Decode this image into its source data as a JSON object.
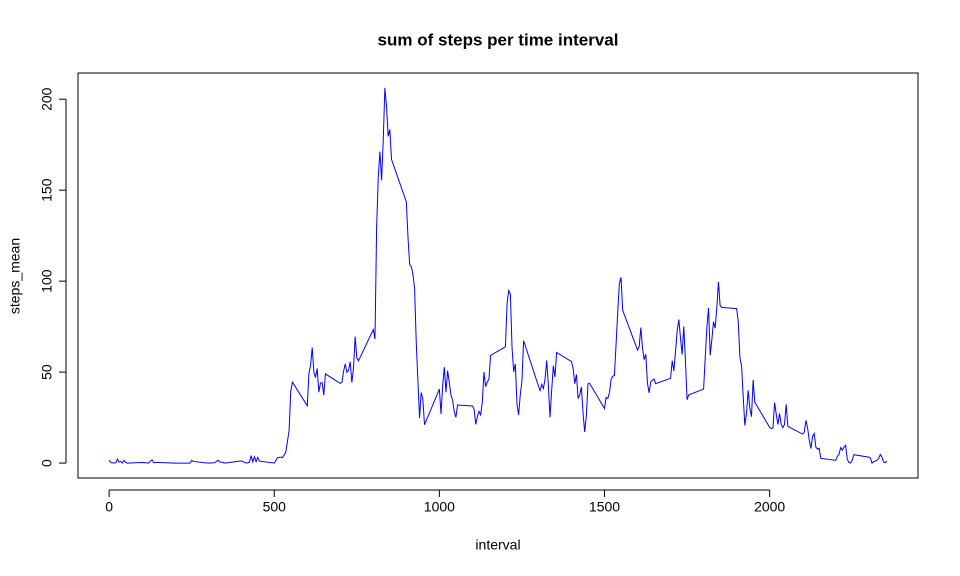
{
  "chart_data": {
    "type": "line",
    "title": "sum of steps per time interval",
    "x_label": "interval",
    "y_label": "steps_mean",
    "color": "#0000ff",
    "x": [
      0,
      5,
      10,
      20,
      25,
      30,
      35,
      40,
      45,
      50,
      55,
      100,
      110,
      120,
      125,
      130,
      135,
      145,
      150,
      200,
      230,
      245,
      250,
      255,
      300,
      320,
      330,
      335,
      340,
      350,
      400,
      415,
      425,
      430,
      435,
      440,
      445,
      450,
      455,
      500,
      510,
      520,
      525,
      535,
      545,
      550,
      555,
      600,
      605,
      610,
      615,
      620,
      625,
      630,
      635,
      640,
      645,
      650,
      655,
      700,
      705,
      710,
      715,
      720,
      725,
      730,
      735,
      740,
      745,
      750,
      755,
      800,
      805,
      810,
      815,
      820,
      825,
      830,
      835,
      840,
      845,
      850,
      855,
      900,
      905,
      910,
      915,
      920,
      925,
      930,
      935,
      940,
      945,
      950,
      955,
      1000,
      1005,
      1010,
      1015,
      1020,
      1025,
      1030,
      1035,
      1040,
      1045,
      1050,
      1055,
      1100,
      1105,
      1110,
      1115,
      1120,
      1125,
      1130,
      1135,
      1140,
      1145,
      1150,
      1155,
      1200,
      1205,
      1210,
      1215,
      1220,
      1225,
      1230,
      1235,
      1240,
      1245,
      1250,
      1255,
      1300,
      1305,
      1310,
      1315,
      1320,
      1325,
      1330,
      1335,
      1340,
      1345,
      1350,
      1355,
      1400,
      1405,
      1410,
      1415,
      1420,
      1425,
      1430,
      1435,
      1440,
      1445,
      1450,
      1455,
      1500,
      1505,
      1510,
      1515,
      1520,
      1525,
      1530,
      1535,
      1540,
      1545,
      1550,
      1555,
      1600,
      1605,
      1610,
      1615,
      1620,
      1625,
      1630,
      1635,
      1640,
      1645,
      1650,
      1655,
      1700,
      1705,
      1710,
      1715,
      1720,
      1725,
      1730,
      1735,
      1740,
      1745,
      1750,
      1755,
      1800,
      1805,
      1810,
      1815,
      1820,
      1825,
      1830,
      1835,
      1840,
      1845,
      1850,
      1855,
      1900,
      1905,
      1910,
      1915,
      1920,
      1925,
      1930,
      1935,
      1940,
      1945,
      1950,
      1955,
      2000,
      2005,
      2010,
      2015,
      2020,
      2025,
      2030,
      2035,
      2040,
      2045,
      2050,
      2055,
      2100,
      2105,
      2110,
      2115,
      2120,
      2125,
      2130,
      2135,
      2140,
      2145,
      2150,
      2155,
      2200,
      2205,
      2210,
      2215,
      2220,
      2225,
      2230,
      2235,
      2240,
      2245,
      2250,
      2255,
      2300,
      2305,
      2310,
      2315,
      2320,
      2325,
      2330,
      2335,
      2340,
      2345,
      2350,
      2355
    ],
    "values": [
      1.7,
      0.3,
      0.1,
      0.1,
      2.1,
      0.5,
      0.9,
      0,
      1.5,
      0.4,
      0,
      0.3,
      0.2,
      0,
      1.1,
      1.8,
      0.2,
      0.4,
      0.3,
      0,
      0,
      0,
      1.5,
      0.9,
      0,
      0.2,
      1.6,
      0.6,
      0.5,
      0,
      1.2,
      0,
      0.4,
      4.1,
      0.7,
      3.5,
      0.8,
      3.1,
      1.1,
      0,
      3,
      3.3,
      3,
      6,
      18,
      39.5,
      44.5,
      31.5,
      49.3,
      53.8,
      63.5,
      50,
      47,
      52,
      39,
      44,
      44.2,
      37.4,
      49,
      43.8,
      44.4,
      50.5,
      54.5,
      49.9,
      51,
      55.7,
      44.3,
      52.3,
      69.5,
      57.8,
      56.2,
      73.4,
      68.2,
      129.4,
      157.5,
      171.2,
      155.4,
      177.3,
      206.2,
      195.9,
      179.6,
      183.4,
      167,
      143.5,
      124,
      109.1,
      108.1,
      103.7,
      95.9,
      66.2,
      45.2,
      24.8,
      38.8,
      35,
      21.1,
      40.6,
      27,
      42.4,
      52.7,
      38.9,
      50.8,
      44.3,
      37.4,
      34.7,
      28.3,
      25.1,
      31.9,
      31.4,
      29.7,
      21.3,
      25.5,
      28.4,
      26.5,
      33.4,
      50,
      42,
      44.6,
      46,
      59.2,
      63.9,
      87.7,
      94.8,
      92.8,
      63.4,
      50.2,
      54.5,
      32.4,
      26.5,
      37.7,
      45.1,
      67.3,
      42.3,
      39.9,
      43.3,
      41,
      46.2,
      56.4,
      42.8,
      25.1,
      40,
      53.5,
      47.3,
      60.8,
      55.8,
      52,
      43.6,
      48.7,
      35.5,
      37.5,
      41.8,
      27.5,
      17.1,
      26.1,
      43.6,
      43.8,
      30,
      36.1,
      35.5,
      38.8,
      46,
      47.8,
      48.1,
      65.3,
      82.9,
      98.7,
      102.1,
      84,
      62.1,
      64.1,
      74.5,
      63.2,
      56.9,
      59.8,
      43.9,
      38.6,
      44.7,
      45.5,
      46.2,
      43.7,
      46.6,
      56.3,
      50.7,
      61.2,
      72.7,
      78.9,
      68.9,
      59.7,
      75.1,
      56.5,
      34.8,
      37.5,
      40.7,
      58,
      74.7,
      85.3,
      59.3,
      67.8,
      77.7,
      74.2,
      85.3,
      99.5,
      86.6,
      85.6,
      84.9,
      77.8,
      58,
      53.4,
      36.3,
      20.7,
      27.4,
      40,
      30.2,
      25.5,
      45.7,
      33.5,
      19.6,
      19,
      19.3,
      33.3,
      26.8,
      21.2,
      27.3,
      21.3,
      19.5,
      21.3,
      32.3,
      20.2,
      15.9,
      17.2,
      23.5,
      19.2,
      12.5,
      8,
      14.7,
      16.3,
      8.7,
      7.8,
      8.1,
      2.6,
      1.5,
      3.7,
      4.8,
      8.5,
      7.1,
      8.7,
      9.75,
      2.2,
      0.3,
      0.1,
      1.6,
      4.6,
      3.3,
      2.8,
      0,
      0.8,
      0.96,
      1.6,
      2.6,
      4.7,
      3.3,
      0.6,
      0.2,
      1.1
    ],
    "xlim": [
      -94.2,
      2449.2
    ],
    "ylim": [
      -8.2,
      214.4
    ],
    "xticks": [
      0,
      500,
      1000,
      1500,
      2000
    ],
    "yticks": [
      0,
      50,
      100,
      150,
      200
    ]
  }
}
